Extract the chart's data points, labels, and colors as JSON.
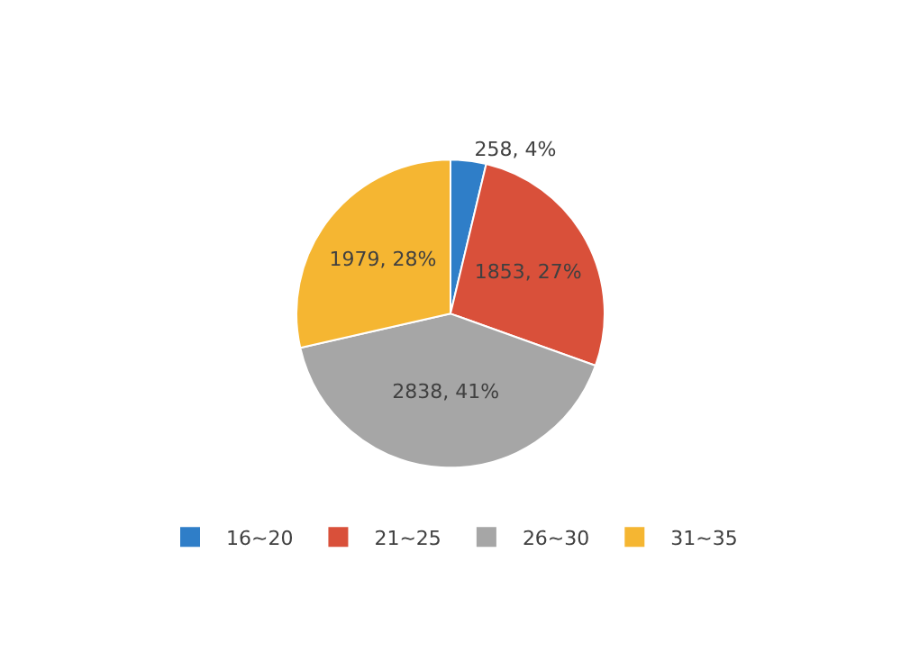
{
  "chart_data": {
    "type": "pie",
    "categories": [
      "16~20",
      "21~25",
      "26~30",
      "31~35"
    ],
    "values": [
      258,
      1853,
      2838,
      1979
    ],
    "value_labels": [
      "258, 4%",
      "1853, 27%",
      "2838, 41%",
      "1979, 28%"
    ],
    "colors": [
      "#2f7ec8",
      "#d9503a",
      "#a6a6a6",
      "#f5b632"
    ],
    "legend": "bottom"
  }
}
